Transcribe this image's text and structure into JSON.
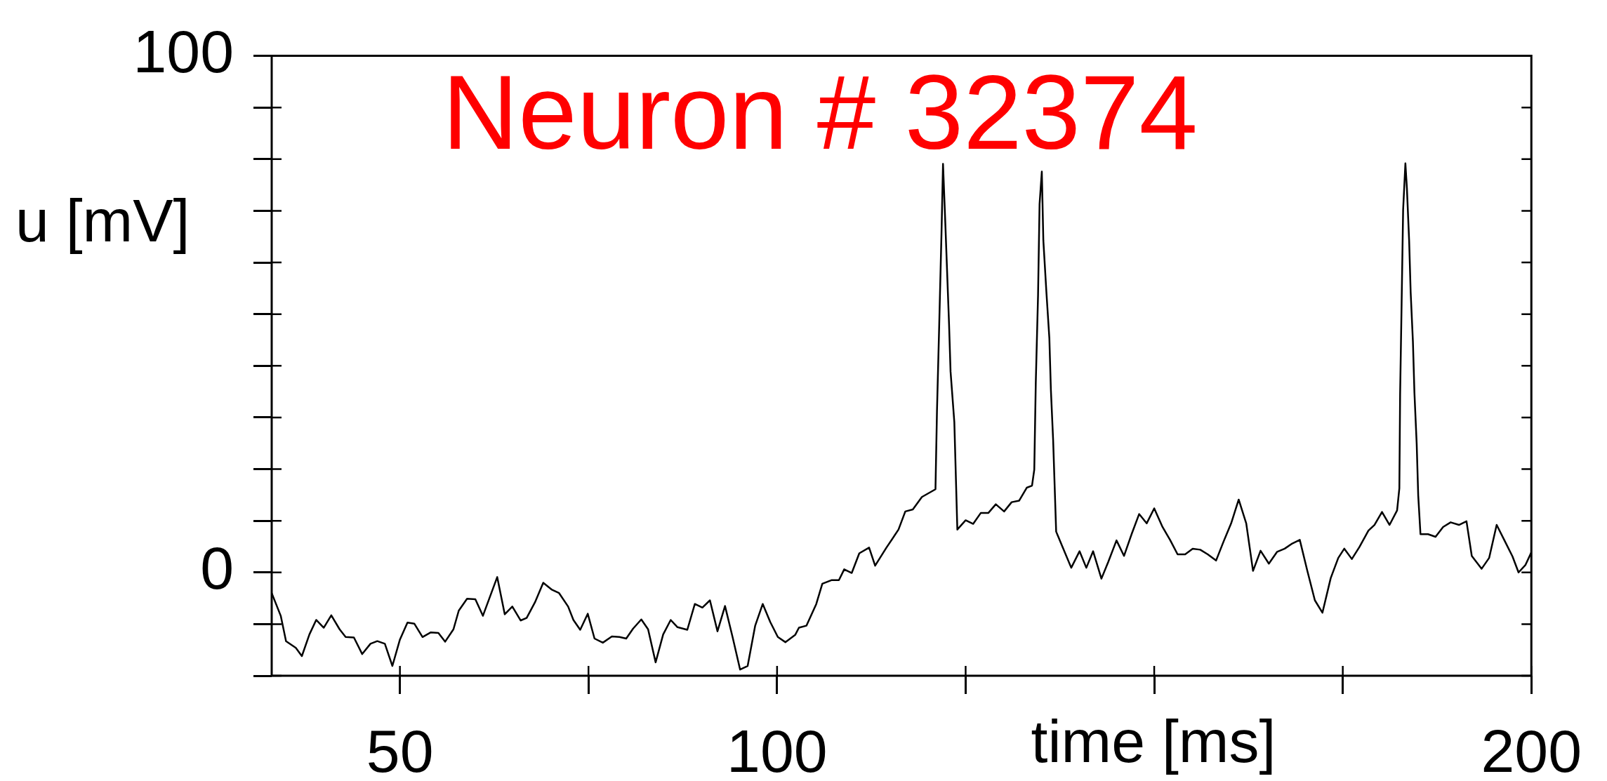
{
  "chart_data": {
    "type": "line",
    "title": "Neuron # 32374",
    "xlabel": "time [ms]",
    "ylabel": "u [mV]",
    "x": [
      33,
      34.2,
      34.9,
      36.2,
      37,
      38,
      38.9,
      39.9,
      40.9,
      42,
      42.8,
      43.9,
      45,
      46.1,
      47,
      48,
      49,
      50,
      51,
      51.9,
      53,
      54.1,
      55.1,
      56,
      57.1,
      57.8,
      58.9,
      60,
      61,
      62.9,
      63.9,
      64.9,
      66,
      66.8,
      67.9,
      69,
      70.1,
      71.1,
      72.3,
      73,
      73.9,
      74.9,
      75.8,
      76.9,
      78.1,
      79.1,
      80,
      80.9,
      82,
      82.9,
      83.9,
      84.9,
      85.9,
      86.8,
      88.1,
      89.1,
      90.1,
      91.1,
      92.1,
      93.1,
      94.1,
      95.1,
      96.1,
      97.1,
      98.1,
      99.1,
      100.1,
      101.1,
      102.4,
      102.9,
      103.9,
      105.2,
      106,
      107.2,
      108.2,
      108.9,
      109.9,
      110.9,
      112.2,
      113,
      114.5,
      116.1,
      117,
      118,
      119.2,
      121,
      121.2,
      121.5,
      121.8,
      122,
      122.3,
      122.8,
      123,
      123.5,
      123.9,
      125,
      126,
      127,
      128,
      129,
      130.1,
      131.1,
      132.1,
      133.1,
      133.8,
      134.1,
      134.3,
      134.6,
      134.8,
      135.1,
      135.3,
      135.7,
      136.1,
      136.3,
      136.6,
      137,
      137.8,
      139,
      140.1,
      141,
      141.9,
      143,
      143.9,
      145,
      146,
      147,
      148,
      149,
      150,
      151.1,
      152.1,
      153.1,
      154.1,
      155.1,
      156.1,
      157.1,
      158.2,
      159.2,
      160.2,
      161.2,
      162.2,
      163.1,
      164.1,
      165.2,
      166.3,
      167.3,
      168.3,
      169.3,
      170.3,
      171.3,
      172.3,
      173.4,
      174.4,
      175.2,
      176.2,
      177.2,
      178.4,
      179.2,
      180.2,
      181.2,
      182.2,
      182.5,
      182.6,
      182.8,
      183,
      183.3,
      183.5,
      183.8,
      184,
      184.3,
      184.5,
      184.8,
      185,
      185.3,
      186.3,
      187.3,
      188.3,
      189.3,
      190.4,
      191.4,
      192.1,
      193.4,
      194.4,
      195.4,
      196.4,
      197.5,
      198.3,
      199.2,
      200
    ],
    "series": [
      {
        "color": "#000000",
        "values": [
          -4,
          -8.4,
          -13.3,
          -14.6,
          -16.2,
          -12,
          -9.2,
          -10.7,
          -8.3,
          -11,
          -12.5,
          -12.6,
          -15.8,
          -13.8,
          -13.3,
          -13.8,
          -18.1,
          -13,
          -9.7,
          -9.9,
          -12.5,
          -11.6,
          -11.7,
          -13.4,
          -11,
          -7.4,
          -5.1,
          -5.2,
          -8.4,
          -0.9,
          -8.1,
          -6.6,
          -9.3,
          -8.8,
          -5.8,
          -2,
          -3.3,
          -4,
          -6.6,
          -9.2,
          -11.1,
          -8,
          -12.8,
          -13.6,
          -12.4,
          -12.5,
          -12.8,
          -10.9,
          -9.1,
          -11,
          -17.4,
          -12,
          -9.2,
          -10.6,
          -11.1,
          -6.1,
          -6.8,
          -5.4,
          -11.4,
          -6.5,
          -12.5,
          -18.8,
          -18.1,
          -10.3,
          -6.1,
          -9.6,
          -12.5,
          -13.5,
          -12.1,
          -10.7,
          -10.3,
          -6.1,
          -2.2,
          -1.5,
          -1.5,
          0.6,
          -0.1,
          3.7,
          4.8,
          1.3,
          4.8,
          8.3,
          11.8,
          12.2,
          14.6,
          16.1,
          31.2,
          48.1,
          65.7,
          79.1,
          67.8,
          48.1,
          38.9,
          29.1,
          8.3,
          10.1,
          9.4,
          11.5,
          11.5,
          13.2,
          11.8,
          13.6,
          13.9,
          16.4,
          16.8,
          19.9,
          36.8,
          53.7,
          71.3,
          77.6,
          64.3,
          54.4,
          45.3,
          35.4,
          25.6,
          7.9,
          5.1,
          0.9,
          4.1,
          0.9,
          4.1,
          -1.2,
          2,
          6.2,
          3.2,
          7.4,
          11.3,
          9.5,
          12.4,
          8.8,
          6.3,
          3.5,
          3.5,
          4.6,
          4.4,
          3.5,
          2.3,
          6,
          9.5,
          14.1,
          9.5,
          0.3,
          4.2,
          1.7,
          4,
          4.6,
          5.6,
          6.3,
          0.3,
          -5.4,
          -7.8,
          -1.1,
          2.8,
          4.6,
          2.6,
          4.9,
          8.1,
          9.2,
          11.7,
          9.2,
          12,
          16.3,
          34.4,
          52.1,
          70.2,
          79.2,
          74.4,
          64.1,
          54.2,
          44.6,
          34.7,
          24.8,
          14.9,
          7.4,
          7.4,
          6.9,
          8.8,
          9.7,
          9.2,
          9.9,
          3.2,
          0.7,
          2.8,
          9.2,
          6.3,
          3.1,
          0,
          1.4,
          3.9
        ]
      }
    ],
    "xlim": [
      33,
      200
    ],
    "xticks": [
      50,
      {
        "value": 75,
        "label": null
      },
      100,
      {
        "value": 125,
        "label": null
      },
      {
        "value": 150,
        "label": null
      },
      {
        "value": 175,
        "label": null
      },
      200
    ],
    "ylim": [
      -20,
      100
    ],
    "yticks": [
      {
        "value": -20,
        "label": null
      },
      {
        "value": -10,
        "label": null
      },
      0,
      {
        "value": 10,
        "label": null
      },
      {
        "value": 20,
        "label": null
      },
      {
        "value": 30,
        "label": null
      },
      {
        "value": 40,
        "label": null
      },
      {
        "value": 50,
        "label": null
      },
      {
        "value": 60,
        "label": null
      },
      {
        "value": 70,
        "label": null
      },
      {
        "value": 80,
        "label": null
      },
      {
        "value": 90,
        "label": null
      },
      100
    ]
  }
}
